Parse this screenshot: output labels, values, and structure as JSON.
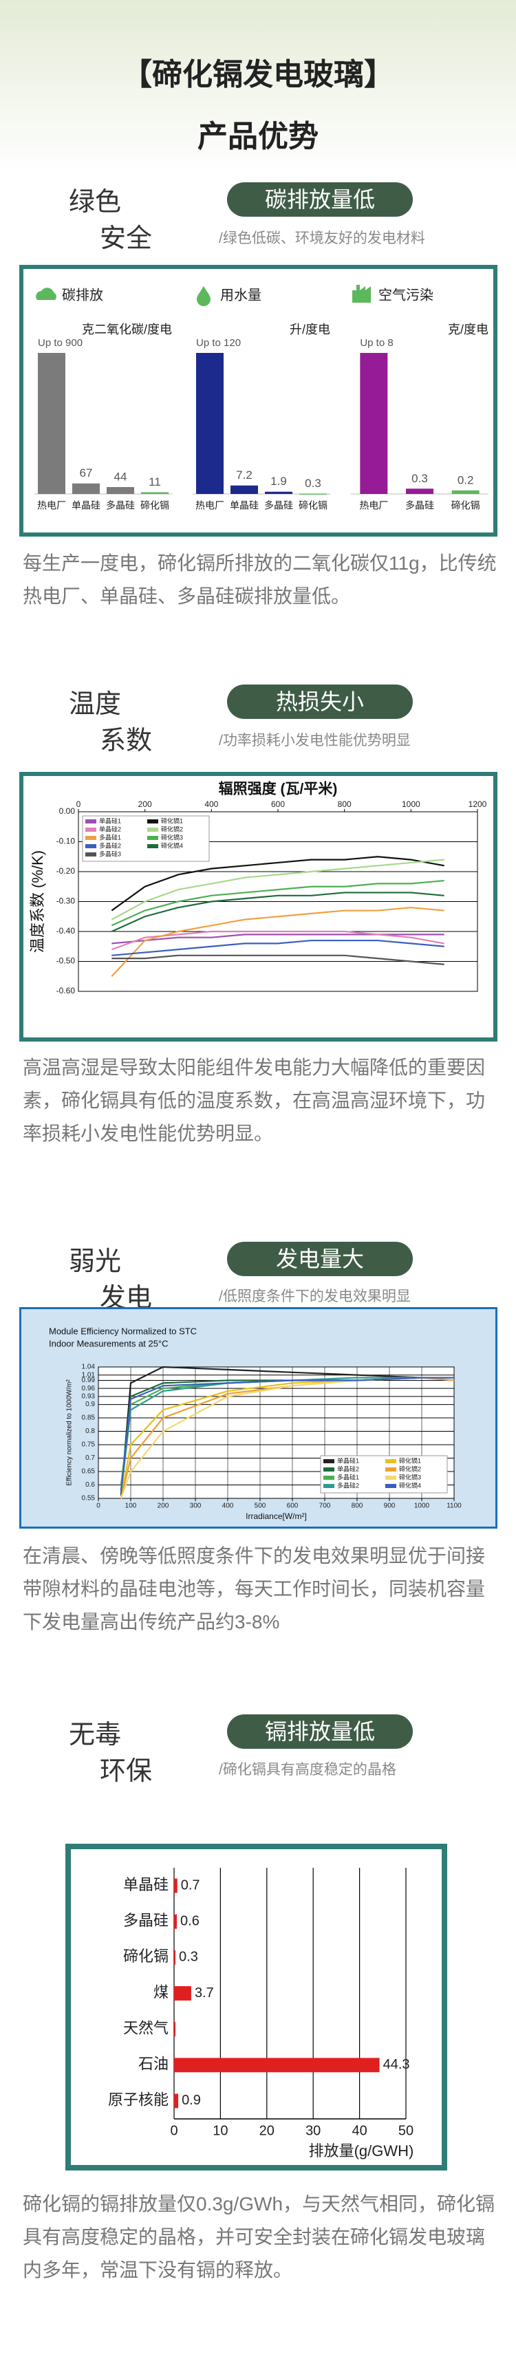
{
  "header": {
    "title": "【碲化镉发电玻璃】",
    "subtitle": "产品优势"
  },
  "sections": [
    {
      "heading": [
        "绿色",
        "安全"
      ],
      "tag": "碳排放量低",
      "note": "/绿色低碳、环境友好的发电材料",
      "text": "每生产一度电，碲化镉所排放的二氧化碳仅11g，比传统热电厂、单晶硅、多晶硅碳排放量低。"
    },
    {
      "heading": [
        "温度",
        "系数"
      ],
      "tag": "热损失小",
      "note": "/功率损耗小发电性能优势明显",
      "text": "高温高湿是导致太阳能组件发电能力大幅降低的重要因素，碲化镉具有低的温度系数，在高温高湿环境下，功率损耗小发电性能优势明显。"
    },
    {
      "heading": [
        "弱光",
        "发电"
      ],
      "tag": "发电量大",
      "note": "/低照度条件下的发电效果明显",
      "text": "在清晨、傍晚等低照度条件下的发电效果明显优于间接带隙材料的晶硅电池等，每天工作时间长，同装机容量下发电量高出传统产品约3-8%"
    },
    {
      "heading": [
        "无毒",
        "环保"
      ],
      "tag": "镉排放量低",
      "note": "/碲化镉具有高度稳定的晶格",
      "text": "碲化镉的镉排放量仅0.3g/GWh，与天然气相同，碲化镉具有高度稳定的晶格，并可安全封装在碲化镉发电玻璃内多年，常温下没有镉的释放。"
    }
  ],
  "chart_data": [
    {
      "type": "bar",
      "title": "碳排放",
      "y_label": "克二氧化碳/度电",
      "categories": [
        "热电厂",
        "单晶硅",
        "多晶硅",
        "碲化镉"
      ],
      "values": [
        900,
        67,
        44,
        11
      ],
      "value_labels": [
        "Up to 900",
        "67",
        "44",
        "11"
      ],
      "colors": [
        "#7b7b7b",
        "#7b7b7b",
        "#7b7b7b",
        "#5cb85c"
      ],
      "ylim": [
        0,
        900
      ]
    },
    {
      "type": "bar",
      "title": "用水量",
      "y_label": "升/度电",
      "categories": [
        "热电厂",
        "单晶硅",
        "多晶硅",
        "碲化镉"
      ],
      "values": [
        120,
        7.2,
        1.9,
        0.3
      ],
      "value_labels": [
        "Up to 120",
        "7.2",
        "1.9",
        "0.3"
      ],
      "colors": [
        "#1b2a8c",
        "#1b2a8c",
        "#1b2a8c",
        "#5cb85c"
      ],
      "ylim": [
        0,
        120
      ]
    },
    {
      "type": "bar",
      "title": "空气污染",
      "y_label": "克/度电",
      "categories": [
        "热电厂",
        "多晶硅",
        "碲化镉"
      ],
      "values": [
        8,
        0.3,
        0.2
      ],
      "value_labels": [
        "Up to 8",
        "0.3",
        "0.2"
      ],
      "colors": [
        "#951b97",
        "#951b97",
        "#5cb85c"
      ],
      "ylim": [
        0,
        8
      ]
    },
    {
      "type": "line",
      "title": "辐照强度 (瓦/平米)",
      "y_label": "温度系数 (%/K)",
      "x_axis_position": "top",
      "grid": true,
      "legend": "upper left",
      "x": [
        100,
        200,
        300,
        400,
        500,
        600,
        700,
        800,
        900,
        1000,
        1100
      ],
      "xlim": [
        0,
        1200
      ],
      "xticks": [
        0,
        200,
        400,
        600,
        800,
        1000,
        1200
      ],
      "ylim": [
        -0.6,
        0
      ],
      "yticks": [
        {
          "value": 0,
          "label": "0.00"
        },
        {
          "value": -0.1,
          "label": "-0.10"
        },
        {
          "value": -0.2,
          "label": "-0.20"
        },
        {
          "value": -0.3,
          "label": "-0.30"
        },
        {
          "value": -0.4,
          "label": "-0.40"
        },
        {
          "value": -0.5,
          "label": "-0.50"
        },
        {
          "value": -0.6,
          "label": "-0.60"
        }
      ],
      "series": [
        {
          "name": "单晶硅1",
          "color": "#9b4fb0",
          "values": [
            -0.44,
            -0.43,
            -0.42,
            -0.42,
            -0.41,
            -0.41,
            -0.41,
            -0.41,
            -0.41,
            -0.41,
            -0.41
          ]
        },
        {
          "name": "单晶硅2",
          "color": "#e07fb8",
          "values": [
            -0.46,
            -0.42,
            -0.41,
            -0.4,
            -0.4,
            -0.4,
            -0.4,
            -0.4,
            -0.41,
            -0.42,
            -0.44
          ]
        },
        {
          "name": "多晶硅1",
          "color": "#f0a040",
          "values": [
            -0.55,
            -0.43,
            -0.4,
            -0.38,
            -0.36,
            -0.35,
            -0.34,
            -0.33,
            -0.33,
            -0.32,
            -0.33
          ]
        },
        {
          "name": "多晶硅2",
          "color": "#3a5fc0",
          "values": [
            -0.48,
            -0.47,
            -0.46,
            -0.45,
            -0.44,
            -0.44,
            -0.43,
            -0.43,
            -0.43,
            -0.44,
            -0.45
          ]
        },
        {
          "name": "多晶硅3",
          "color": "#555555",
          "values": [
            -0.49,
            -0.49,
            -0.48,
            -0.48,
            -0.48,
            -0.48,
            -0.48,
            -0.48,
            -0.49,
            -0.5,
            -0.51
          ]
        },
        {
          "name": "碲化镉1",
          "color": "#111111",
          "values": [
            -0.33,
            -0.25,
            -0.21,
            -0.19,
            -0.18,
            -0.17,
            -0.16,
            -0.16,
            -0.15,
            -0.16,
            -0.18
          ]
        },
        {
          "name": "碲化镉2",
          "color": "#a8d88a",
          "values": [
            -0.36,
            -0.3,
            -0.26,
            -0.24,
            -0.22,
            -0.21,
            -0.2,
            -0.19,
            -0.18,
            -0.17,
            -0.16
          ]
        },
        {
          "name": "碲化镉3",
          "color": "#4caf50",
          "values": [
            -0.38,
            -0.33,
            -0.3,
            -0.28,
            -0.27,
            -0.26,
            -0.25,
            -0.25,
            -0.24,
            -0.24,
            -0.23
          ]
        },
        {
          "name": "碲化镉4",
          "color": "#1f6b3a",
          "values": [
            -0.4,
            -0.35,
            -0.32,
            -0.3,
            -0.29,
            -0.28,
            -0.28,
            -0.27,
            -0.27,
            -0.27,
            -0.28
          ]
        }
      ]
    },
    {
      "type": "line",
      "title": "Module Efficiency Normalized to STC",
      "subtitle": "Indoor Measurements at 25°C",
      "x_label": "Irradiance[W/m²]",
      "y_label": "Efficiency normalized to 1000W/m²",
      "grid": true,
      "legend": "lower right",
      "x": [
        70,
        100,
        200,
        400,
        600,
        800,
        1000,
        1100
      ],
      "xlim": [
        0,
        1100
      ],
      "xticks": [
        0,
        100,
        200,
        300,
        400,
        500,
        600,
        700,
        800,
        900,
        1000,
        1100
      ],
      "ylim": [
        0.55,
        1.04
      ],
      "yticks": [
        0.55,
        0.6,
        0.65,
        0.7,
        0.75,
        0.8,
        0.85,
        0.9,
        0.93,
        0.96,
        0.99,
        1.01,
        1.04
      ],
      "series": [
        {
          "name": "单晶硅1",
          "color": "#222222",
          "values": [
            0.56,
            0.98,
            1.04,
            1.03,
            1.02,
            1.01,
            1.0,
            1.0
          ]
        },
        {
          "name": "单晶硅2",
          "color": "#1f6b3a",
          "values": [
            0.58,
            0.93,
            0.98,
            0.99,
            0.99,
            0.99,
            1.0,
            1.0
          ]
        },
        {
          "name": "多晶硅1",
          "color": "#4caf50",
          "values": [
            0.6,
            0.9,
            0.96,
            0.98,
            0.99,
            0.99,
            1.0,
            1.0
          ]
        },
        {
          "name": "多晶硅2",
          "color": "#2a9d8f",
          "values": [
            0.57,
            0.88,
            0.95,
            0.98,
            0.99,
            1.0,
            1.0,
            1.0
          ]
        },
        {
          "name": "碲化镉1",
          "color": "#e8c020",
          "values": [
            0.55,
            0.75,
            0.88,
            0.95,
            0.98,
            0.99,
            1.0,
            1.0
          ]
        },
        {
          "name": "碲化镉2",
          "color": "#f0a030",
          "values": [
            0.55,
            0.7,
            0.85,
            0.94,
            0.97,
            0.99,
            1.0,
            0.99
          ]
        },
        {
          "name": "碲化镉3",
          "color": "#f3d870",
          "values": [
            0.55,
            0.65,
            0.8,
            0.93,
            0.97,
            0.99,
            1.0,
            1.0
          ]
        },
        {
          "name": "碲化镉4",
          "color": "#3a5fc0",
          "values": [
            0.57,
            0.92,
            0.97,
            0.98,
            0.99,
            0.99,
            1.0,
            1.0
          ]
        }
      ]
    },
    {
      "type": "hbar",
      "categories": [
        "单晶硅",
        "多晶硅",
        "碲化镉",
        "煤",
        "天然气",
        "石油",
        "原子核能"
      ],
      "values": [
        0.7,
        0.6,
        0.3,
        3.7,
        0.3,
        44.3,
        0.9
      ],
      "value_labels": [
        "0.7",
        "0.6",
        "0.3",
        "3.7",
        null,
        "44.3",
        "0.9"
      ],
      "color": "#e02020",
      "xlim": [
        0,
        50
      ],
      "xticks": [
        0,
        10,
        20,
        30,
        40,
        50
      ],
      "x_label": "排放量(g/GWH)",
      "grid": true
    }
  ]
}
